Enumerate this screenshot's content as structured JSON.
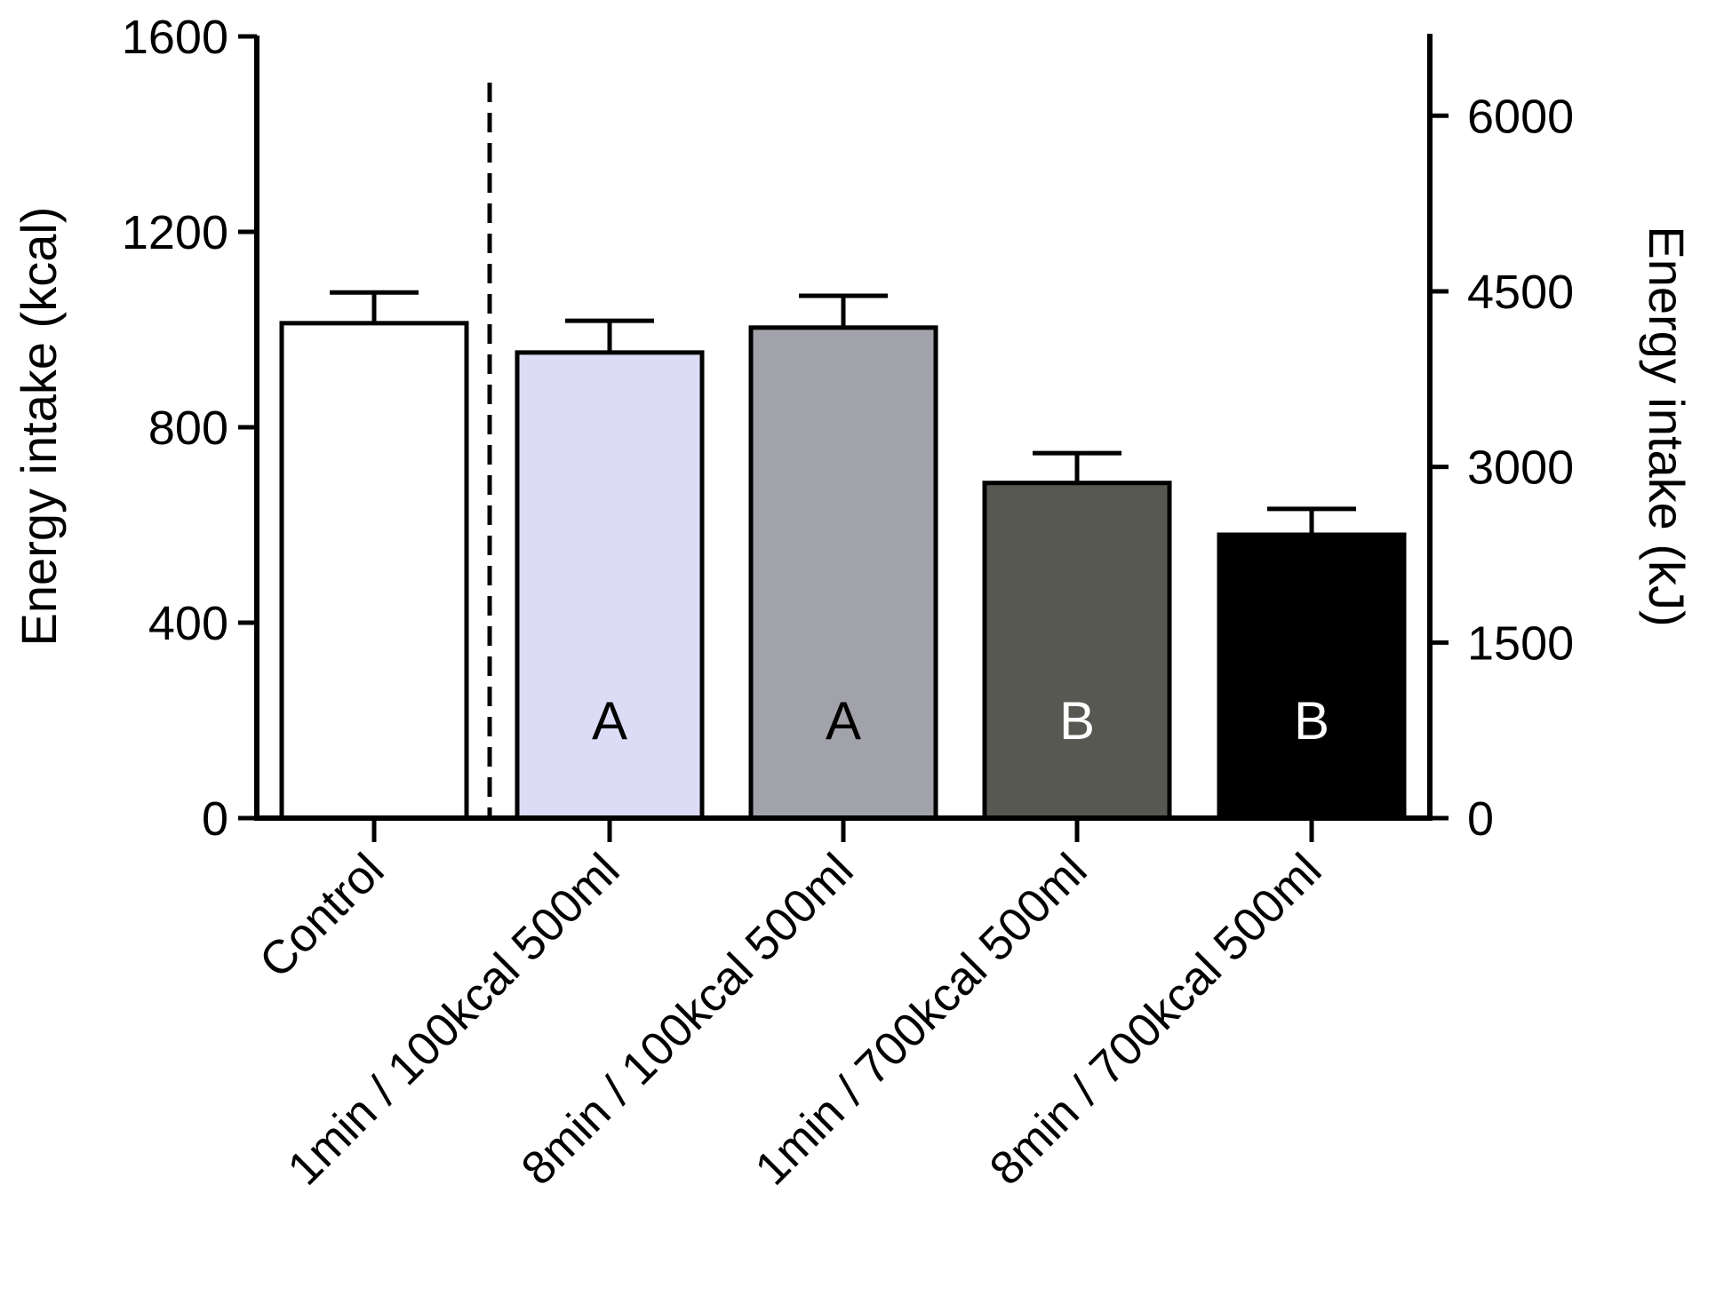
{
  "chart_data": {
    "type": "bar",
    "categories": [
      "Control",
      "1min / 100kcal 500ml",
      "8min / 100kcal 500ml",
      "1min / 700kcal 500ml",
      "8min / 700kcal 500ml"
    ],
    "values": [
      1013,
      953,
      1004,
      686,
      580
    ],
    "errors": [
      63,
      65,
      65,
      61,
      53
    ],
    "bar_colors": [
      "#ffffff",
      "#dcdcf6",
      "#a2a2aa",
      "#585853",
      "#000000"
    ],
    "bar_letters": [
      "",
      "A",
      "A",
      "B",
      "B"
    ],
    "letter_colors": [
      "#000000",
      "#000000",
      "#000000",
      "#ffffff",
      "#ffffff"
    ],
    "ylabel": "Energy intake  (kcal)",
    "ylabel_right": "Energy intake (kJ)",
    "ylim": [
      0,
      1600
    ],
    "yticks": [
      "0",
      "400",
      "800",
      "1200",
      "1600"
    ],
    "ylim_right": [
      0,
      6700
    ],
    "yticks_right": [
      "0",
      "1500",
      "3000",
      "4500",
      "6000"
    ],
    "divider_after_index": 0
  }
}
